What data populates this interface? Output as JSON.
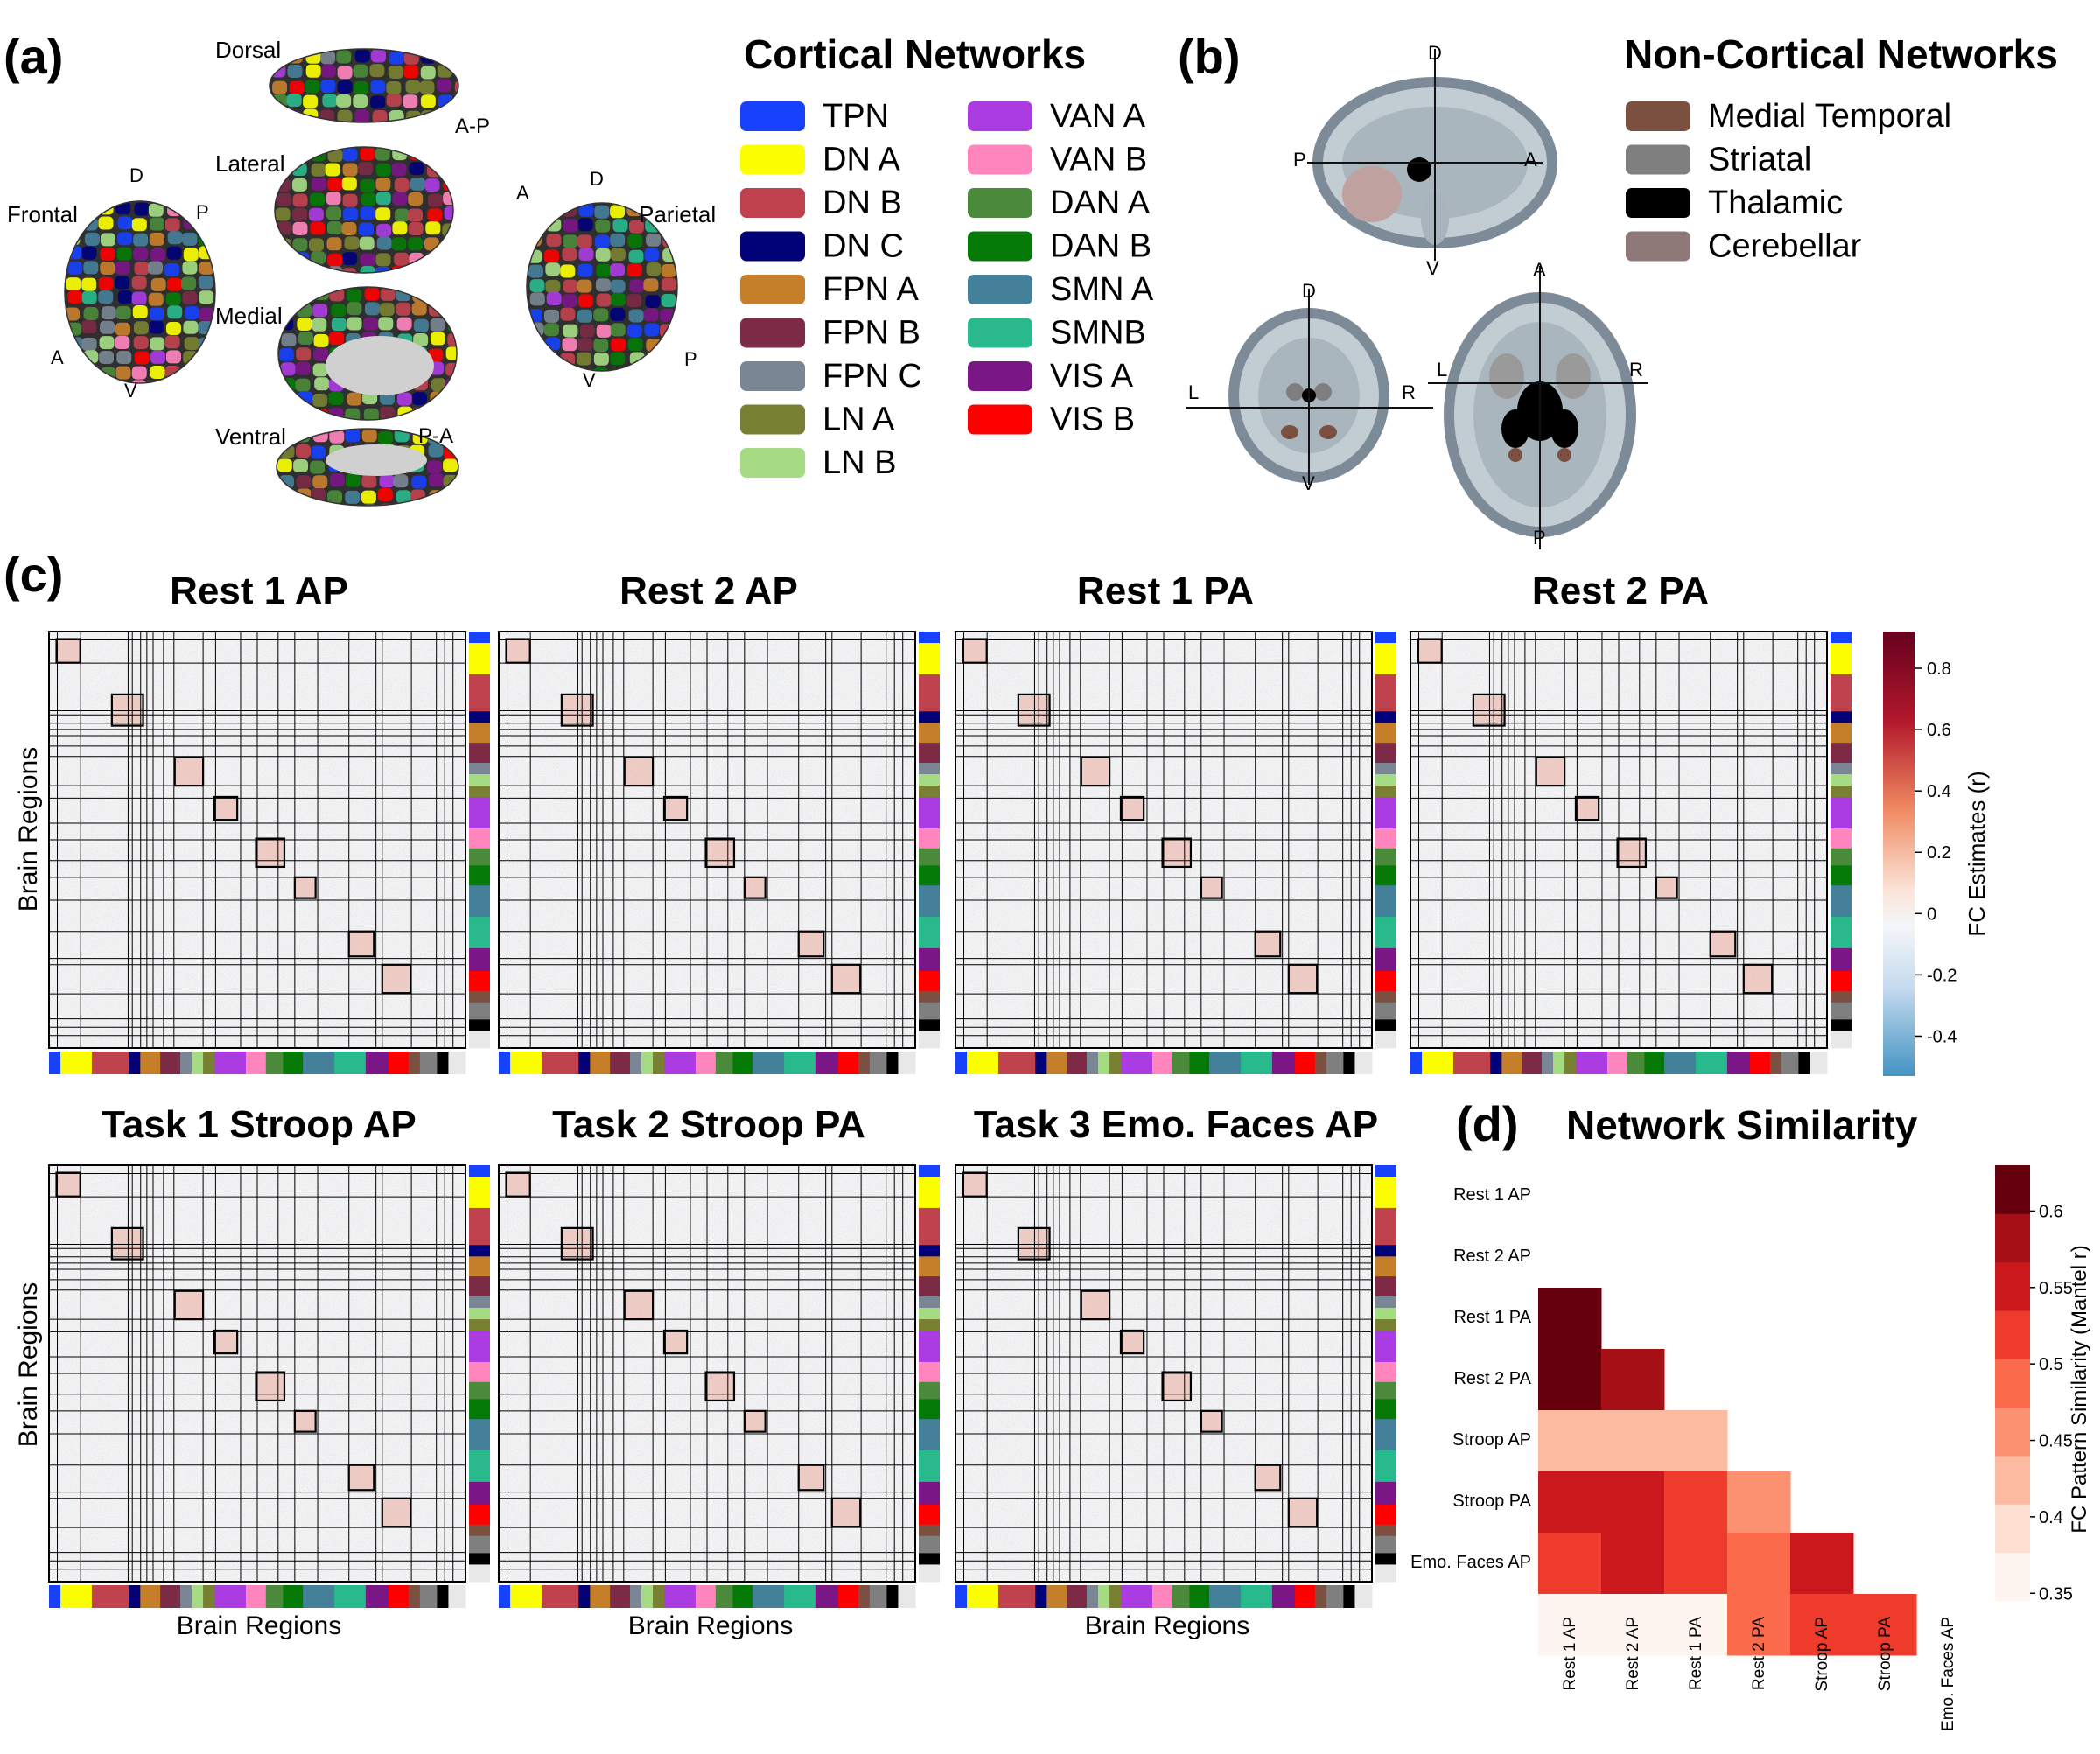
{
  "panels": {
    "a": {
      "label": "(a)",
      "views": [
        "Dorsal",
        "Lateral",
        "Medial",
        "Ventral"
      ],
      "frontal_label": "Frontal",
      "parietal_label": "Parietal",
      "axis_letters": {
        "D": "D",
        "P": "P",
        "A": "A",
        "V": "V"
      },
      "dorsal_axis": "A-P",
      "ventral_axis": "P-A"
    },
    "legend_cortical": {
      "title": "Cortical Networks",
      "items": [
        {
          "label": "TPN",
          "color": "#1741fa"
        },
        {
          "label": "DN A",
          "color": "#fbff00"
        },
        {
          "label": "DN B",
          "color": "#c0424f"
        },
        {
          "label": "DN C",
          "color": "#010178"
        },
        {
          "label": "FPN A",
          "color": "#c57f2b"
        },
        {
          "label": "FPN B",
          "color": "#7c2a46"
        },
        {
          "label": "FPN C",
          "color": "#7a8694"
        },
        {
          "label": "LN A",
          "color": "#788032"
        },
        {
          "label": "LN B",
          "color": "#a5dc83"
        },
        {
          "label": "VAN A",
          "color": "#ab3ce2"
        },
        {
          "label": "VAN B",
          "color": "#ff85bd"
        },
        {
          "label": "DAN A",
          "color": "#4b8a3b"
        },
        {
          "label": "DAN B",
          "color": "#067a06"
        },
        {
          "label": "SMN A",
          "color": "#44809a"
        },
        {
          "label": "SMNB",
          "color": "#29b98c"
        },
        {
          "label": "VIS A",
          "color": "#7b1687"
        },
        {
          "label": "VIS B",
          "color": "#ff0000"
        }
      ]
    },
    "b": {
      "label": "(b)",
      "sagittal_letters": [
        "D",
        "P",
        "A",
        "V"
      ],
      "coronal_letters": [
        "D",
        "L",
        "R",
        "V"
      ],
      "axial_letters": [
        "A",
        "L",
        "R",
        "P"
      ]
    },
    "legend_noncortical": {
      "title": "Non-Cortical Networks",
      "items": [
        {
          "label": "Medial Temporal",
          "color": "#7b5041"
        },
        {
          "label": "Striatal",
          "color": "#7f7f7f"
        },
        {
          "label": "Thalamic",
          "color": "#000000"
        },
        {
          "label": "Cerebellar",
          "color": "#8f7878"
        }
      ]
    },
    "c": {
      "label": "(c)",
      "ylabel": "Brain Regions",
      "xlabel": "Brain Regions",
      "row1_titles": [
        "Rest 1 AP",
        "Rest 2 AP",
        "Rest 1 PA",
        "Rest 2 PA"
      ],
      "row2_titles": [
        "Task 1 Stroop AP",
        "Task 2 Stroop PA",
        "Task 3 Emo. Faces AP"
      ],
      "colorbar": {
        "label": "FC Estimates (r)",
        "ticks": [
          "0.8",
          "0.6",
          "0.4",
          "0.2",
          "0",
          "-0.2",
          "-0.4"
        ]
      },
      "network_strip_colors": [
        "#1741fa",
        "#fbff00",
        "#c0424f",
        "#010178",
        "#c57f2b",
        "#7c2a46",
        "#7a8694",
        "#a5dc83",
        "#788032",
        "#ab3ce2",
        "#ff85bd",
        "#4b8a3b",
        "#067a06",
        "#44809a",
        "#29b98c",
        "#7b1687",
        "#ff0000",
        "#7b5041",
        "#7f7f7f",
        "#000000",
        "#e8e8e8"
      ]
    },
    "d": {
      "label": "(d)",
      "title": "Network Similarity",
      "colorbar": {
        "label": "FC Pattern Similarity (Mantel r)",
        "ticks": [
          "0.6",
          "0.55",
          "0.5",
          "0.45",
          "0.4",
          "0.35"
        ]
      }
    }
  },
  "chart_data": {
    "type": "heatmap",
    "title": "Network Similarity",
    "rows": [
      "Rest 1 AP",
      "Rest 2 AP",
      "Rest 1 PA",
      "Rest 2 PA",
      "Stroop AP",
      "Stroop PA",
      "Emo. Faces AP"
    ],
    "cols": [
      "Rest 1 AP",
      "Rest 2 AP",
      "Rest 1 PA",
      "Rest 2 PA",
      "Stroop AP",
      "Stroop PA",
      "Emo. Faces AP"
    ],
    "values": [
      [
        null,
        null,
        null,
        null,
        null,
        null,
        null
      ],
      [
        0.62,
        null,
        null,
        null,
        null,
        null,
        null
      ],
      [
        0.62,
        0.57,
        null,
        null,
        null,
        null,
        null
      ],
      [
        0.43,
        0.43,
        0.43,
        null,
        null,
        null,
        null
      ],
      [
        0.53,
        0.54,
        0.5,
        0.44,
        null,
        null,
        null
      ],
      [
        0.51,
        0.54,
        0.52,
        0.47,
        0.54,
        null,
        null
      ],
      [
        0.36,
        0.36,
        0.36,
        0.48,
        0.51,
        0.51,
        null
      ]
    ],
    "vmin": 0.35,
    "vmax": 0.62,
    "colorbar_label": "FC Pattern Similarity (Mantel r)"
  }
}
